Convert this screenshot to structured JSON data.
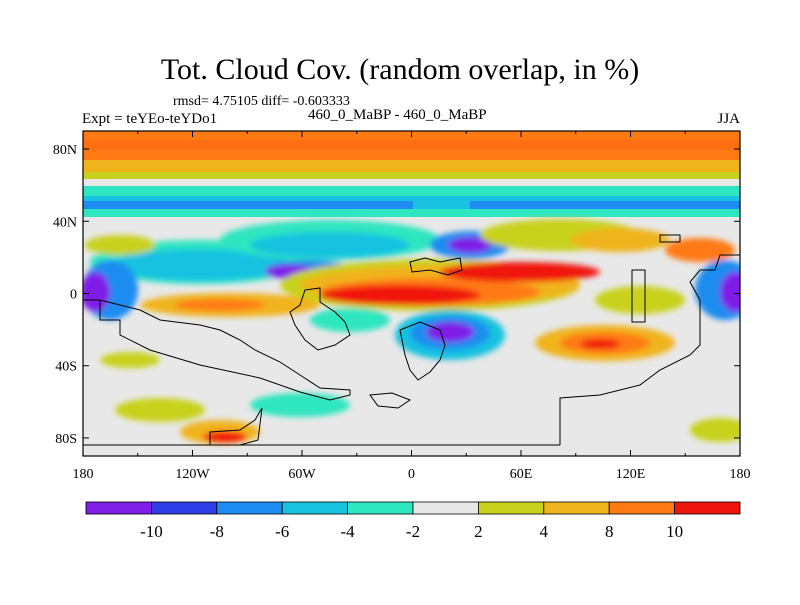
{
  "title": "Tot. Cloud Cov. (random overlap, in %)",
  "stats_line": "rmsd= 4.75105 diff= -0.603333",
  "left_label": "Expt = teYEo-teYDo1",
  "center_label": "460_0_MaBP - 460_0_MaBP",
  "right_label": "JJA",
  "chart_data": {
    "type": "heatmap",
    "x_ticks": [
      "180",
      "120W",
      "60W",
      "0",
      "60E",
      "120E",
      "180"
    ],
    "y_ticks": [
      "80N",
      "40N",
      "0",
      "40S",
      "80S"
    ],
    "x_range": [
      -180,
      180
    ],
    "y_range": [
      -90,
      90
    ],
    "levels": [
      -10,
      -8,
      -6,
      -4,
      -2,
      2,
      4,
      8,
      10
    ],
    "colorbar_labels": [
      "-10",
      "-8",
      "-6",
      "-4",
      "-2",
      "2",
      "4",
      "8",
      "10"
    ],
    "colors": [
      "#7f1fe8",
      "#2f3ee6",
      "#1e8cf0",
      "#18c2e0",
      "#2ee6c0",
      "#e8e8e8",
      "#c8d21e",
      "#f0b41e",
      "#ff7a12",
      "#f0140f"
    ],
    "features": [
      {
        "name": "high-lat positive band",
        "lon": [
          -180,
          180
        ],
        "lat": [
          72,
          88
        ],
        "value": 9
      },
      {
        "name": "equatorial positive band",
        "lon": [
          -55,
          100
        ],
        "lat": [
          -8,
          18
        ],
        "value": 10
      },
      {
        "name": "negative band 50N",
        "lon": [
          -180,
          180
        ],
        "lat": [
          44,
          56
        ],
        "value": -5
      },
      {
        "name": "negative anomaly 20N",
        "lon": [
          -120,
          10
        ],
        "lat": [
          10,
          30
        ],
        "value": -9
      },
      {
        "name": "negative anomaly 25S",
        "lon": [
          5,
          50
        ],
        "lat": [
          -35,
          -15
        ],
        "value": -10
      },
      {
        "name": "positive anomaly 25S",
        "lon": [
          70,
          130
        ],
        "lat": [
          -35,
          -20
        ],
        "value": 8
      },
      {
        "name": "negative anomaly west Pacific",
        "lon": [
          -180,
          -160
        ],
        "lat": [
          -15,
          15
        ],
        "value": -10
      },
      {
        "name": "negative anomaly date line",
        "lon": [
          165,
          180
        ],
        "lat": [
          -15,
          15
        ],
        "value": -10
      },
      {
        "name": "positive anomaly 80S",
        "lon": [
          -115,
          -80
        ],
        "lat": [
          -88,
          -78
        ],
        "value": 10
      }
    ]
  }
}
